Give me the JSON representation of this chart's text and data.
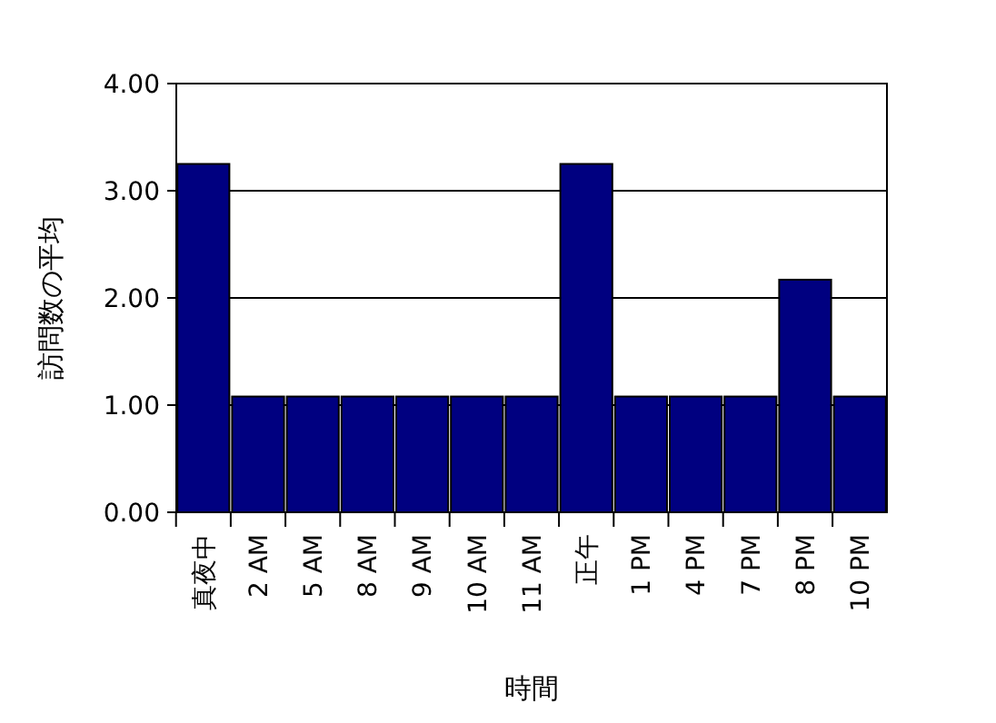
{
  "chart_data": {
    "type": "bar",
    "xlabel": "時間",
    "ylabel": "訪問数の平均",
    "categories": [
      "真夜中",
      "2 AM",
      "5 AM",
      "8 AM",
      "9 AM",
      "10 AM",
      "11 AM",
      "正午",
      "1 PM",
      "4 PM",
      "7 PM",
      "8 PM",
      "10 PM"
    ],
    "values": [
      3.25,
      1.08,
      1.08,
      1.08,
      1.08,
      1.08,
      1.08,
      3.25,
      1.08,
      1.08,
      1.08,
      2.17,
      1.08
    ],
    "color": "#000080",
    "ylim": [
      0,
      4
    ],
    "yticks": [
      {
        "value": 0,
        "label": "0.00"
      },
      {
        "value": 1,
        "label": "1.00"
      },
      {
        "value": 2,
        "label": "2.00"
      },
      {
        "value": 3,
        "label": "3.00"
      },
      {
        "value": 4,
        "label": "4.00"
      }
    ],
    "grid": "y"
  }
}
